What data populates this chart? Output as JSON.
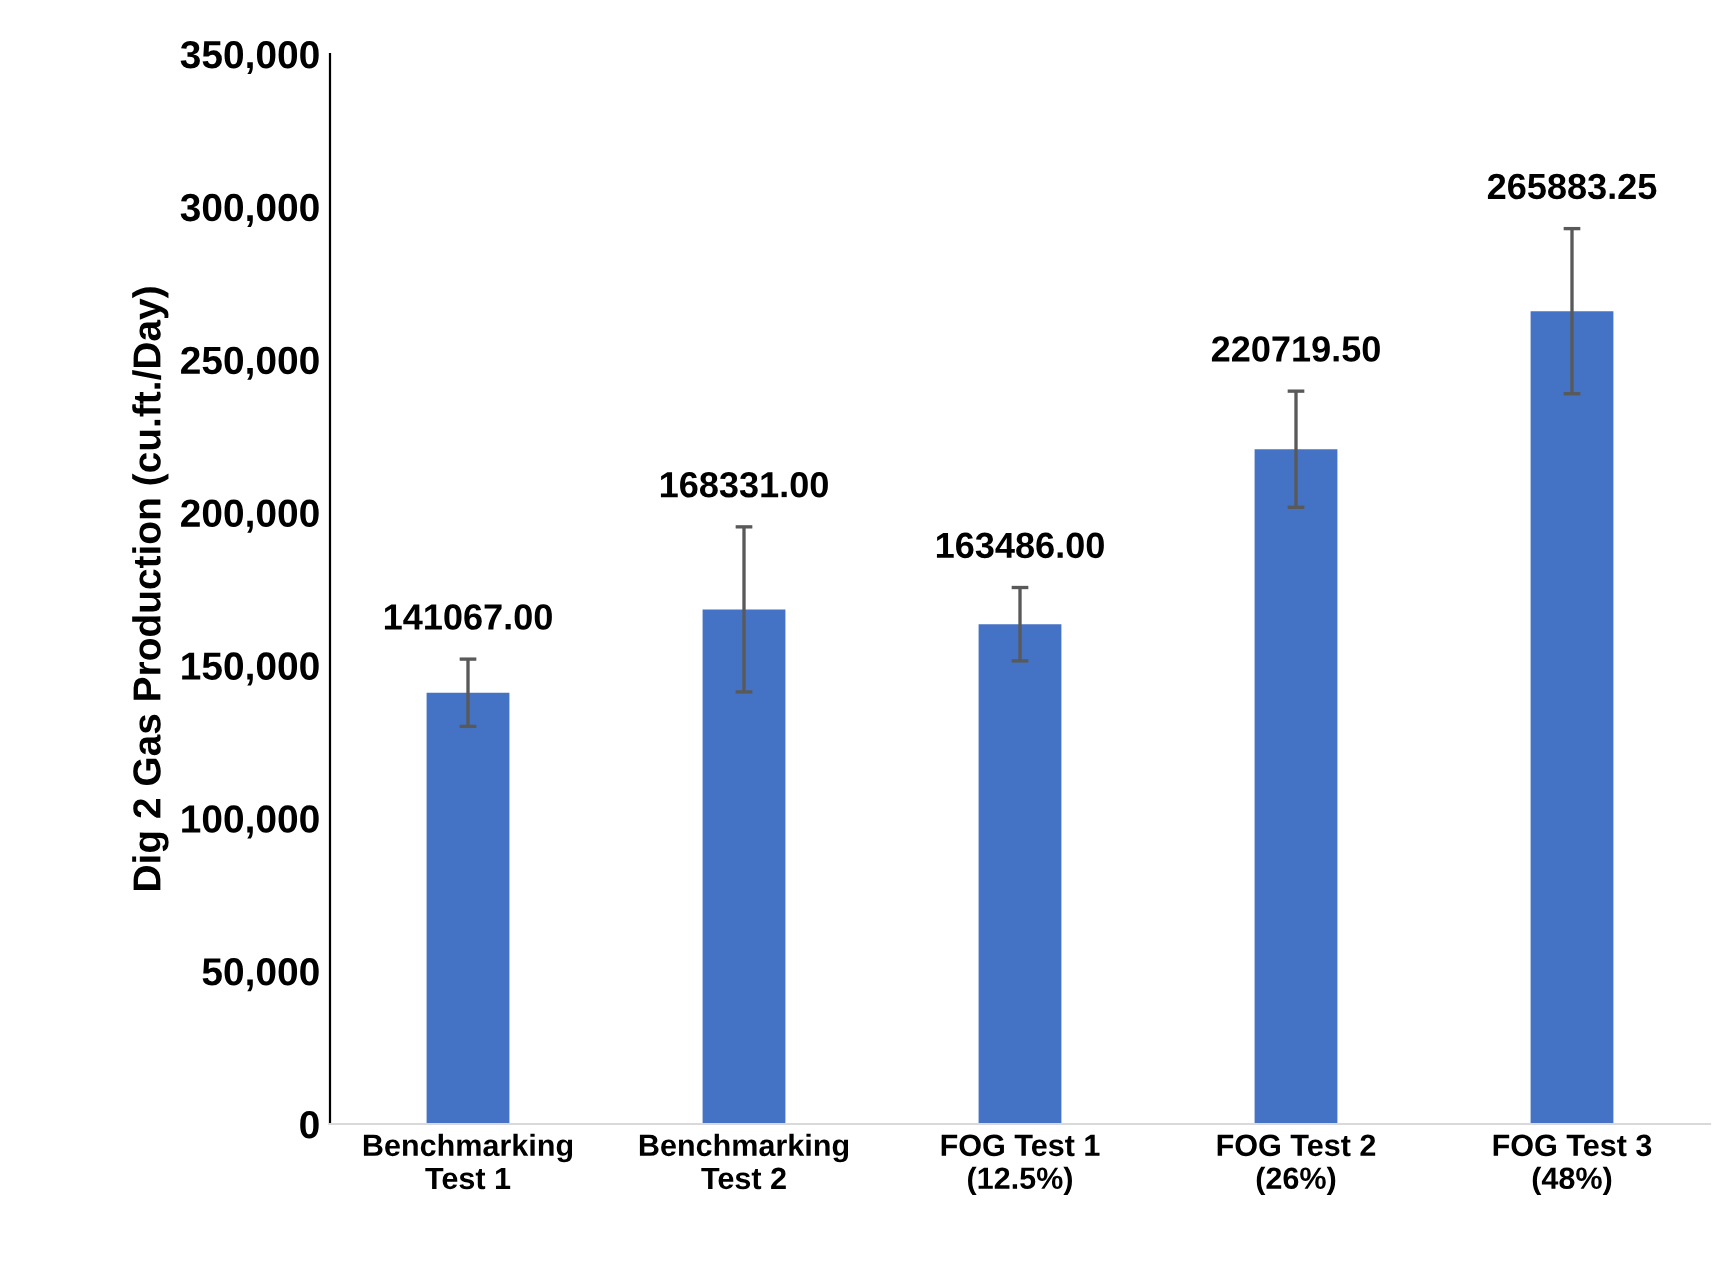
{
  "chart_data": {
    "type": "bar",
    "ylabel": "Dig 2 Gas Production (cu.ft./Day)",
    "categories": [
      "Benchmarking\nTest 1",
      "Benchmarking\nTest 2",
      "FOG Test 1\n(12.5%)",
      "FOG Test 2\n(26%)",
      "FOG Test 3\n(48%)"
    ],
    "values": [
      141067.0,
      168331.0,
      163486.0,
      220719.5,
      265883.25
    ],
    "value_labels": [
      "141067.00",
      "168331.00",
      "163486.00",
      "220719.50",
      "265883.25"
    ],
    "errors": [
      11000,
      27000,
      12000,
      19000,
      27000
    ],
    "color": "#4472c4",
    "ylim": [
      0,
      350000
    ],
    "yticks": [
      {
        "value": 0,
        "label": "0"
      },
      {
        "value": 50000,
        "label": "50,000"
      },
      {
        "value": 100000,
        "label": "100,000"
      },
      {
        "value": 150000,
        "label": "150,000"
      },
      {
        "value": 200000,
        "label": "200,000"
      },
      {
        "value": 250000,
        "label": "250,000"
      },
      {
        "value": 300000,
        "label": "300,000"
      },
      {
        "value": 350000,
        "label": "350,000"
      }
    ],
    "grid": false,
    "legend": false
  }
}
